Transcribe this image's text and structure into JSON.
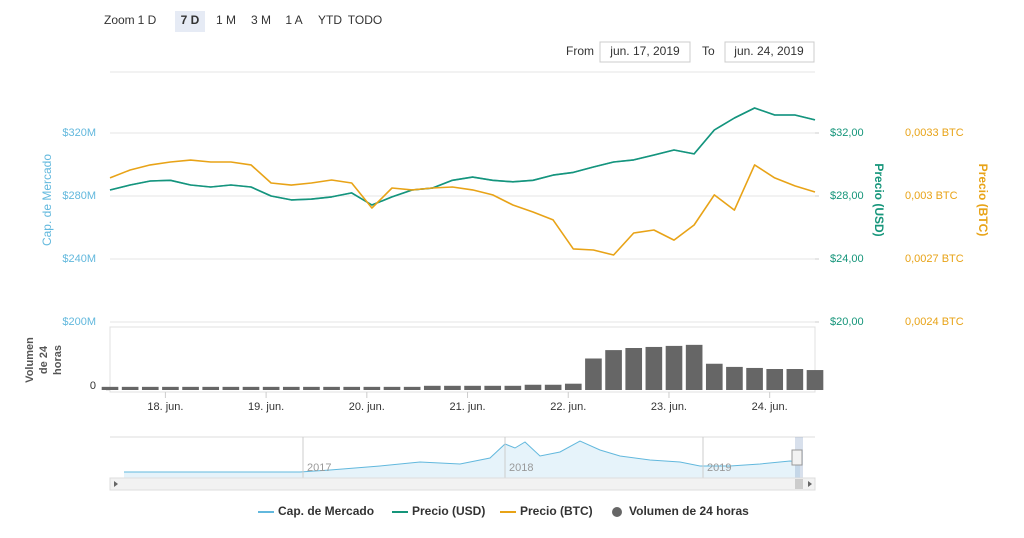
{
  "toolbar": {
    "zoom_label": "Zoom",
    "zoom_buttons": [
      "1 D",
      "7 D",
      "1 M",
      "3 M",
      "1 A",
      "YTD",
      "TODO"
    ],
    "selected_zoom": 1,
    "from_label": "From",
    "from_date": "jun. 17, 2019",
    "to_label": "To",
    "to_date": "jun. 24, 2019"
  },
  "chart_data": {
    "type": "line",
    "x": [
      17.45,
      17.65,
      17.85,
      18.05,
      18.25,
      18.45,
      18.65,
      18.85,
      19.05,
      19.25,
      19.45,
      19.65,
      19.85,
      20.05,
      20.25,
      20.45,
      20.65,
      20.85,
      21.05,
      21.25,
      21.45,
      21.65,
      21.85,
      22.05,
      22.25,
      22.45,
      22.65,
      22.85,
      23.05,
      23.25,
      23.45,
      23.65,
      23.85,
      24.05,
      24.25,
      24.45
    ],
    "xlim": [
      17.45,
      24.45
    ],
    "xticks": [
      {
        "value": 18,
        "label": "18. jun."
      },
      {
        "value": 19,
        "label": "19. jun."
      },
      {
        "value": 20,
        "label": "20. jun."
      },
      {
        "value": 21,
        "label": "21. jun."
      },
      {
        "value": 22,
        "label": "22. jun."
      },
      {
        "value": 23,
        "label": "23. jun."
      },
      {
        "value": 24,
        "label": "24. jun."
      }
    ],
    "y_label": "Cap. de Mercado",
    "ylim": [
      200000000,
      360000000
    ],
    "yticks": [
      {
        "value": 200000000,
        "label": "$200M"
      },
      {
        "value": 240000000,
        "label": "$240M"
      },
      {
        "value": 280000000,
        "label": "$280M"
      },
      {
        "value": 320000000,
        "label": "$320M"
      }
    ],
    "y2_label": "Precio (USD)",
    "y2lim": [
      20,
      36
    ],
    "y2ticks": [
      {
        "value": 20,
        "label": "$20,00"
      },
      {
        "value": 24,
        "label": "$24,00"
      },
      {
        "value": 28,
        "label": "$28,00"
      },
      {
        "value": 32,
        "label": "$32,00"
      }
    ],
    "y3_label": "Precio (BTC)",
    "y3lim": [
      0.0024,
      0.0036
    ],
    "y3ticks": [
      {
        "value": 0.0024,
        "label": "0,0024 BTC"
      },
      {
        "value": 0.0027,
        "label": "0,0027 BTC"
      },
      {
        "value": 0.003,
        "label": "0,003 BTC"
      },
      {
        "value": 0.0033,
        "label": "0,0033 BTC"
      }
    ],
    "volume_label_lines": [
      "Volumen",
      "de 24",
      "horas"
    ],
    "volume_ylim": [
      0,
      60
    ],
    "volume_yticks": [
      0
    ],
    "grid": true,
    "series": [
      {
        "name": "Cap. de Mercado",
        "color": "#62b8dd",
        "axis": "y",
        "values": [
          283800000,
          287000000,
          289500000,
          290000000,
          287000000,
          285700000,
          287000000,
          285700000,
          280000000,
          277500000,
          278000000,
          279400000,
          282000000,
          274300000,
          279400000,
          283800000,
          285000000,
          290000000,
          292000000,
          290000000,
          289000000,
          290000000,
          293300000,
          295000000,
          298400000,
          301600000,
          302900000,
          306000000,
          309200000,
          306700000,
          321900000,
          329500000,
          335900000,
          331400000,
          331400000,
          328300000
        ]
      },
      {
        "name": "Precio (USD)",
        "color": "#15957a",
        "axis": "y2",
        "values": [
          28.38,
          28.7,
          28.95,
          29.0,
          28.7,
          28.57,
          28.7,
          28.57,
          28.0,
          27.75,
          27.8,
          27.94,
          28.2,
          27.43,
          27.94,
          28.38,
          28.5,
          29.0,
          29.2,
          29.0,
          28.9,
          29.0,
          29.33,
          29.5,
          29.84,
          30.16,
          30.29,
          30.6,
          30.92,
          30.67,
          32.19,
          32.95,
          33.59,
          33.14,
          33.14,
          32.83
        ]
      },
      {
        "name": "Precio (BTC)",
        "color": "#e8a317",
        "axis": "y3",
        "values": [
          0.003086,
          0.003124,
          0.003148,
          0.003162,
          0.003171,
          0.003162,
          0.003162,
          0.003148,
          0.003062,
          0.003052,
          0.003062,
          0.003076,
          0.003062,
          0.002943,
          0.003038,
          0.003029,
          0.003038,
          0.003043,
          0.003029,
          0.003005,
          0.002957,
          0.002924,
          0.002886,
          0.002748,
          0.002743,
          0.002719,
          0.002824,
          0.002838,
          0.00279,
          0.002862,
          0.003005,
          0.002933,
          0.003148,
          0.003086,
          0.003048,
          0.003019
        ]
      },
      {
        "name": "Volumen de 24 horas",
        "color": "#666666",
        "axis": "volume",
        "type": "bar",
        "values": [
          3,
          3,
          3,
          3,
          3,
          3,
          3,
          3,
          3,
          3,
          3,
          3,
          3,
          3,
          3,
          3,
          4,
          4,
          4,
          4,
          4,
          5,
          5,
          6,
          30,
          38,
          40,
          41,
          42,
          43,
          25,
          22,
          21,
          20,
          20,
          19
        ]
      }
    ],
    "navigator_labels": [
      "2017",
      "2018",
      "2019"
    ]
  }
}
